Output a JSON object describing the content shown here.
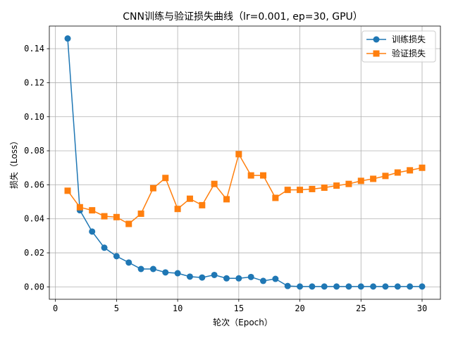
{
  "chart_data": {
    "type": "line",
    "title": "CNN训练与验证损失曲线（lr=0.001, ep=30, GPU）",
    "xlabel": "轮次（Epoch）",
    "ylabel": "损失（Loss）",
    "xlim": [
      -0.5,
      31.5
    ],
    "ylim": [
      -0.0073,
      0.1533
    ],
    "x_ticks": [
      0,
      5,
      10,
      15,
      20,
      25,
      30
    ],
    "y_ticks": [
      0.0,
      0.02,
      0.04,
      0.06,
      0.08,
      0.1,
      0.12,
      0.14
    ],
    "y_tick_labels": [
      "0.00",
      "0.02",
      "0.04",
      "0.06",
      "0.08",
      "0.10",
      "0.12",
      "0.14"
    ],
    "grid": true,
    "legend_position": "top-right",
    "x": [
      1,
      2,
      3,
      4,
      5,
      6,
      7,
      8,
      9,
      10,
      11,
      12,
      13,
      14,
      15,
      16,
      17,
      18,
      19,
      20,
      21,
      22,
      23,
      24,
      25,
      26,
      27,
      28,
      29,
      30
    ],
    "series": [
      {
        "name": "训练损失",
        "color": "#1f77b4",
        "marker": "circle",
        "values": [
          0.146,
          0.045,
          0.0325,
          0.023,
          0.018,
          0.0143,
          0.0105,
          0.0105,
          0.0085,
          0.008,
          0.006,
          0.0055,
          0.007,
          0.005,
          0.005,
          0.0058,
          0.0035,
          0.0047,
          0.0005,
          0.0002,
          0.0002,
          0.0002,
          0.0002,
          0.0002,
          0.0002,
          0.0002,
          0.0002,
          0.0002,
          0.0002,
          0.0002
        ]
      },
      {
        "name": "验证损失",
        "color": "#ff7f0e",
        "marker": "square",
        "values": [
          0.0565,
          0.0468,
          0.045,
          0.0415,
          0.041,
          0.037,
          0.043,
          0.058,
          0.064,
          0.0458,
          0.0518,
          0.048,
          0.0605,
          0.0515,
          0.078,
          0.0655,
          0.0655,
          0.0523,
          0.057,
          0.057,
          0.0575,
          0.0583,
          0.0595,
          0.0605,
          0.0623,
          0.0635,
          0.0652,
          0.0672,
          0.0685,
          0.07
        ]
      }
    ]
  }
}
